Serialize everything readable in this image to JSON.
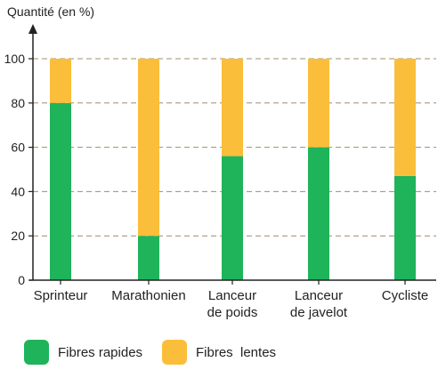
{
  "chart_data": {
    "type": "bar",
    "stacked": true,
    "ylabel": "Quantité (en %)",
    "xlabel": "",
    "ylim": [
      0,
      100
    ],
    "yticks": [
      0,
      20,
      40,
      60,
      80,
      100
    ],
    "grid": "dashed-horizontal",
    "categories": [
      [
        "Sprinteur"
      ],
      [
        "Marathonien"
      ],
      [
        "Lanceur",
        "de poids"
      ],
      [
        "Lanceur",
        "de javelot"
      ],
      [
        "Cycliste"
      ]
    ],
    "series": [
      {
        "name": "Fibres rapides",
        "color": "#1fb35a",
        "values": [
          80,
          20,
          56,
          60,
          47
        ]
      },
      {
        "name": "Fibres  lentes",
        "color": "#fbbe3a",
        "values": [
          20,
          80,
          44,
          40,
          53
        ]
      }
    ],
    "legend_position": "bottom"
  }
}
